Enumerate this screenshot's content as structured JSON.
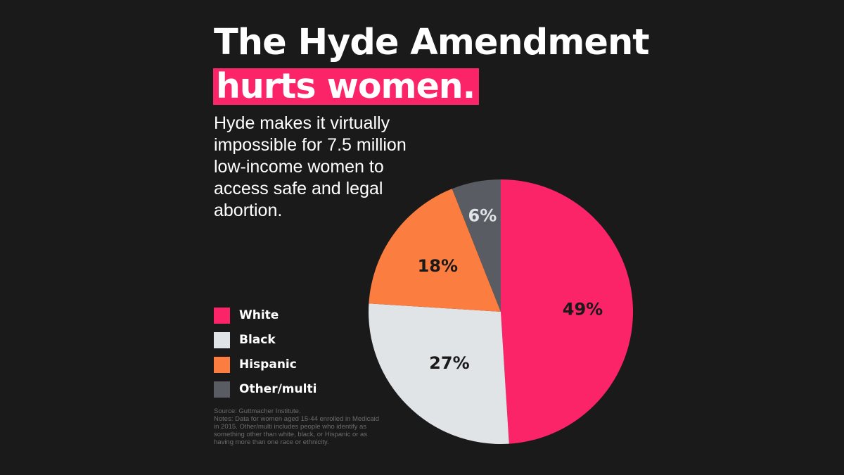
{
  "title": {
    "line1": "The Hyde Amendment",
    "line2": "hurts women."
  },
  "subtitle": "Hyde makes it virtually impossible for 7.5 million low-income women to access safe and legal abortion.",
  "source": {
    "line1": "Source: Guttmacher Institute.",
    "notes": "Notes: Data for women aged 15-44 enrolled in Medicaid in 2015. Other/multi includes people who identify as something other than white, black, or Hispanic or as having more than one race or ethnicity."
  },
  "colors": {
    "background": "#1b1a1b",
    "accent": "#fb2469"
  },
  "chart_data": {
    "type": "pie",
    "categories": [
      "White",
      "Black",
      "Hispanic",
      "Other/multi"
    ],
    "values": [
      49,
      27,
      18,
      6
    ],
    "labels": [
      "49%",
      "27%",
      "18%",
      "6%"
    ],
    "colors": [
      "#fb2469",
      "#e1e4e7",
      "#fb7d3f",
      "#595c63"
    ],
    "label_colors": [
      "#1b1a1b",
      "#1b1a1b",
      "#1b1a1b",
      "#e1e4e7"
    ],
    "start": "12 o'clock",
    "direction": "clockwise",
    "legend_position": "left"
  }
}
